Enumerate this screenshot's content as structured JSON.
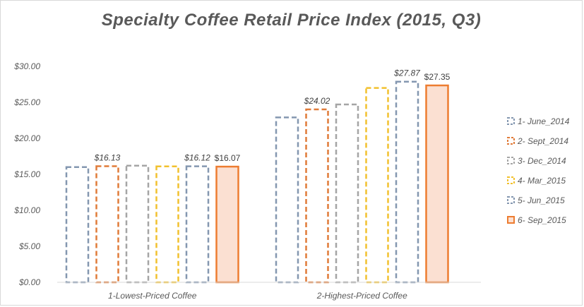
{
  "chart_data": {
    "type": "bar",
    "title": "Specialty Coffee Retail Price Index (2015, Q3)",
    "xlabel": "",
    "ylabel": "",
    "categories": [
      "1-Lowest-Priced Coffee",
      "2-Highest-Priced Coffee"
    ],
    "ylim": [
      0,
      30
    ],
    "yticks": [
      0,
      5,
      10,
      15,
      20,
      25,
      30
    ],
    "ytick_labels": [
      "$0.00",
      "$5.00",
      "$10.00",
      "$15.00",
      "$20.00",
      "$25.00",
      "$30.00"
    ],
    "grid": false,
    "legend_position": "right",
    "series": [
      {
        "name": "1- June_2014",
        "values": [
          16.0,
          22.9
        ],
        "color": "#8497b0",
        "style": "dashed",
        "data_labels": [
          "",
          ""
        ]
      },
      {
        "name": "2- Sept_2014",
        "values": [
          16.13,
          24.02
        ],
        "color": "#e07b39",
        "style": "dashed",
        "data_labels": [
          "$16.13",
          "$24.02"
        ]
      },
      {
        "name": "3- Dec_2014",
        "values": [
          16.2,
          24.7
        ],
        "color": "#a5a5a5",
        "style": "dashed",
        "data_labels": [
          "",
          ""
        ]
      },
      {
        "name": "4- Mar_2015",
        "values": [
          16.1,
          27.0
        ],
        "color": "#f2c12e",
        "style": "dashed",
        "data_labels": [
          "",
          ""
        ]
      },
      {
        "name": "5- Jun_2015",
        "values": [
          16.12,
          27.87
        ],
        "color": "#8497b0",
        "style": "dashed",
        "data_labels": [
          "$16.12",
          "$27.87"
        ]
      },
      {
        "name": "6- Sep_2015",
        "values": [
          16.07,
          27.35
        ],
        "color": "#ed7d31",
        "fill": "#fbe0d2",
        "style": "solid",
        "data_labels": [
          "$16.07",
          "$27.35"
        ]
      }
    ]
  }
}
